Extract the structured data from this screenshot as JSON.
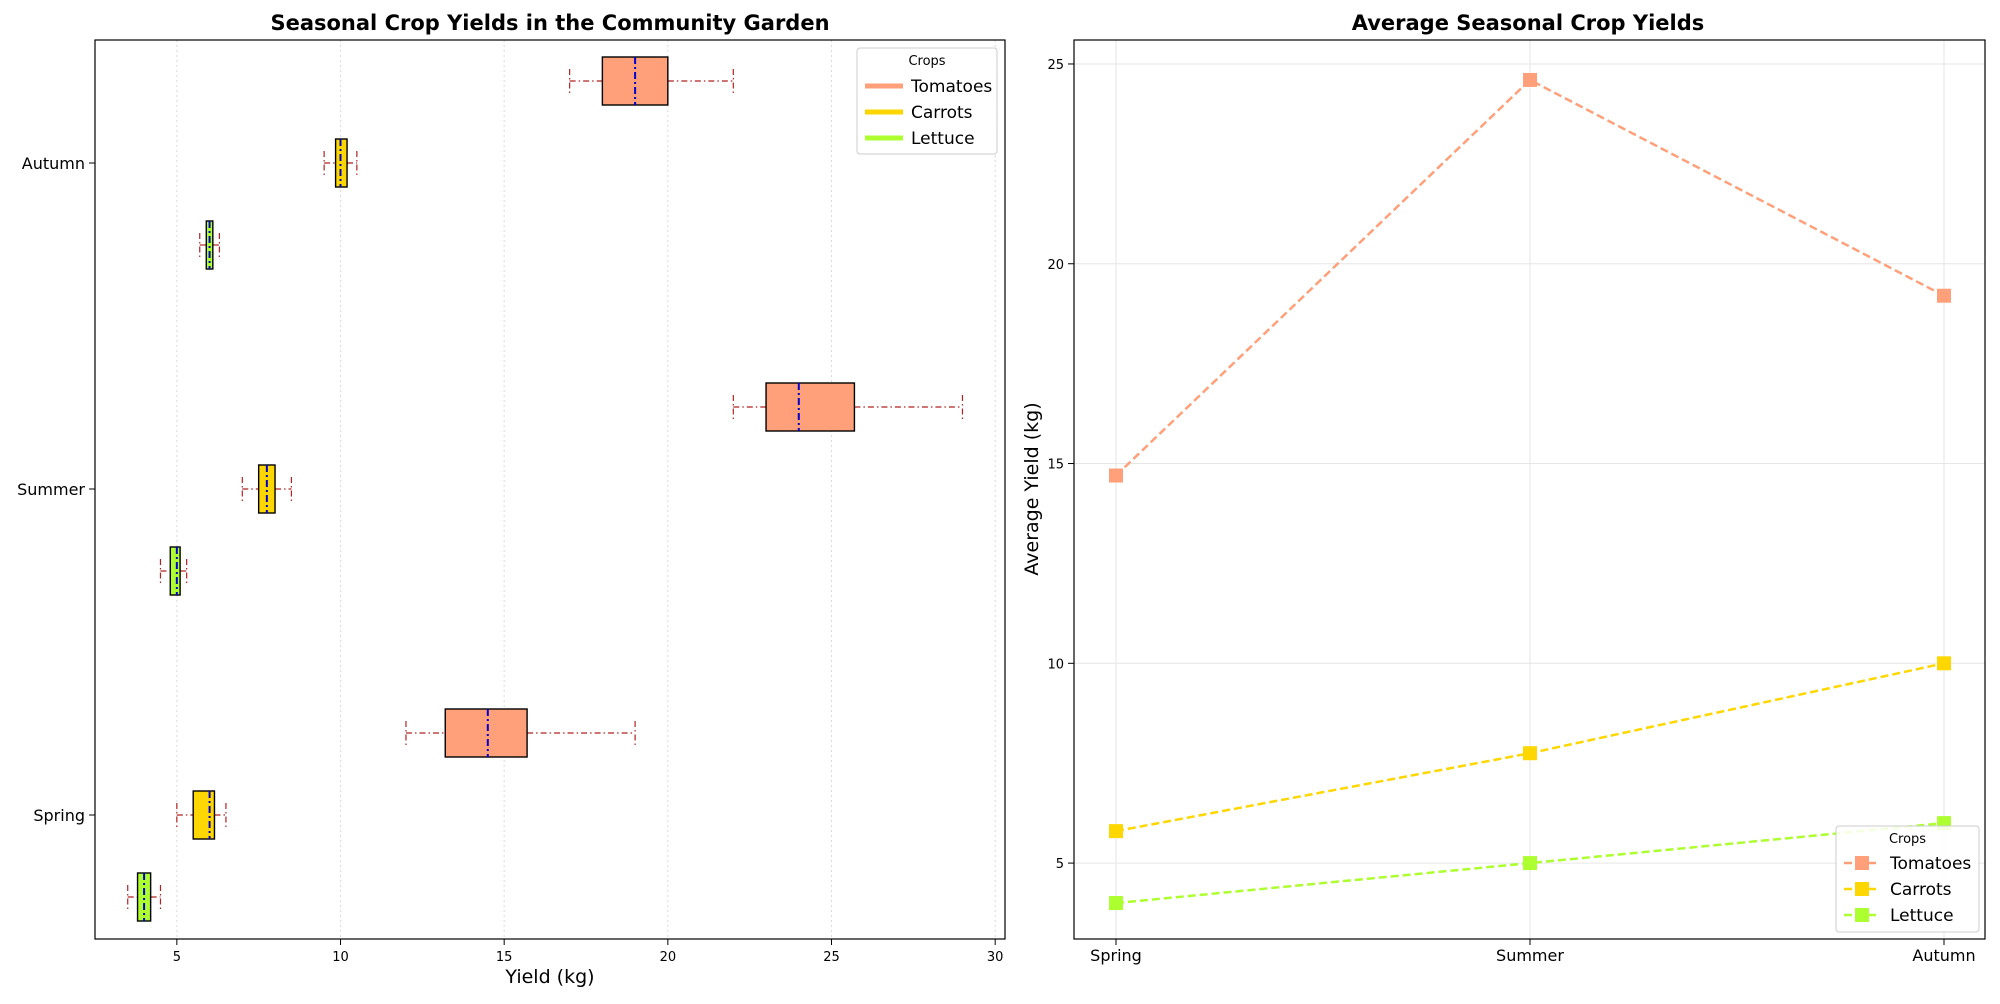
{
  "chart_data": [
    {
      "type": "box",
      "orientation": "horizontal",
      "title": "Seasonal Crop Yields in the Community Garden",
      "xlabel": "Yield (kg)",
      "ylabel": "",
      "xlim": [
        2.5,
        30.3
      ],
      "xticks": [
        5,
        10,
        15,
        20,
        25,
        30
      ],
      "categories": [
        "Spring",
        "Summer",
        "Autumn"
      ],
      "grid": "x-dotted",
      "legend": {
        "title": "Crops",
        "placement": "top-right"
      },
      "series": [
        {
          "name": "Tomatoes",
          "color": "#ffa07a",
          "boxes": [
            {
              "season": "Spring",
              "whislo": 12.0,
              "q1": 13.2,
              "med": 14.5,
              "q3": 15.7,
              "whishi": 19.0
            },
            {
              "season": "Summer",
              "whislo": 22.0,
              "q1": 23.0,
              "med": 24.0,
              "q3": 25.7,
              "whishi": 29.0
            },
            {
              "season": "Autumn",
              "whislo": 17.0,
              "q1": 18.0,
              "med": 19.0,
              "q3": 20.0,
              "whishi": 22.0
            }
          ]
        },
        {
          "name": "Carrots",
          "color": "#ffd700",
          "boxes": [
            {
              "season": "Spring",
              "whislo": 5.0,
              "q1": 5.5,
              "med": 6.0,
              "q3": 6.15,
              "whishi": 6.5
            },
            {
              "season": "Summer",
              "whislo": 7.0,
              "q1": 7.5,
              "med": 7.75,
              "q3": 8.0,
              "whishi": 8.5
            },
            {
              "season": "Autumn",
              "whislo": 9.5,
              "q1": 9.85,
              "med": 10.0,
              "q3": 10.2,
              "whishi": 10.5
            }
          ]
        },
        {
          "name": "Lettuce",
          "color": "#adff2f",
          "boxes": [
            {
              "season": "Spring",
              "whislo": 3.5,
              "q1": 3.8,
              "med": 4.0,
              "q3": 4.2,
              "whishi": 4.5
            },
            {
              "season": "Summer",
              "whislo": 4.5,
              "q1": 4.8,
              "med": 5.0,
              "q3": 5.1,
              "whishi": 5.3
            },
            {
              "season": "Autumn",
              "whislo": 5.7,
              "q1": 5.9,
              "med": 6.0,
              "q3": 6.1,
              "whishi": 6.3
            }
          ]
        }
      ]
    },
    {
      "type": "line",
      "title": "Average Seasonal Crop Yields",
      "xlabel": "",
      "ylabel": "Average Yield (kg)",
      "x": [
        "Spring",
        "Summer",
        "Autumn"
      ],
      "ylim": [
        3.1,
        25.6
      ],
      "yticks": [
        5,
        10,
        15,
        20,
        25
      ],
      "grid": true,
      "legend": {
        "title": "Crops",
        "placement": "bottom-right"
      },
      "series": [
        {
          "name": "Tomatoes",
          "color": "#ffa07a",
          "values": [
            14.7,
            24.6,
            19.2
          ]
        },
        {
          "name": "Carrots",
          "color": "#ffd700",
          "values": [
            5.8,
            7.75,
            10.0
          ]
        },
        {
          "name": "Lettuce",
          "color": "#adff2f",
          "values": [
            4.0,
            5.0,
            6.0
          ]
        }
      ]
    }
  ]
}
